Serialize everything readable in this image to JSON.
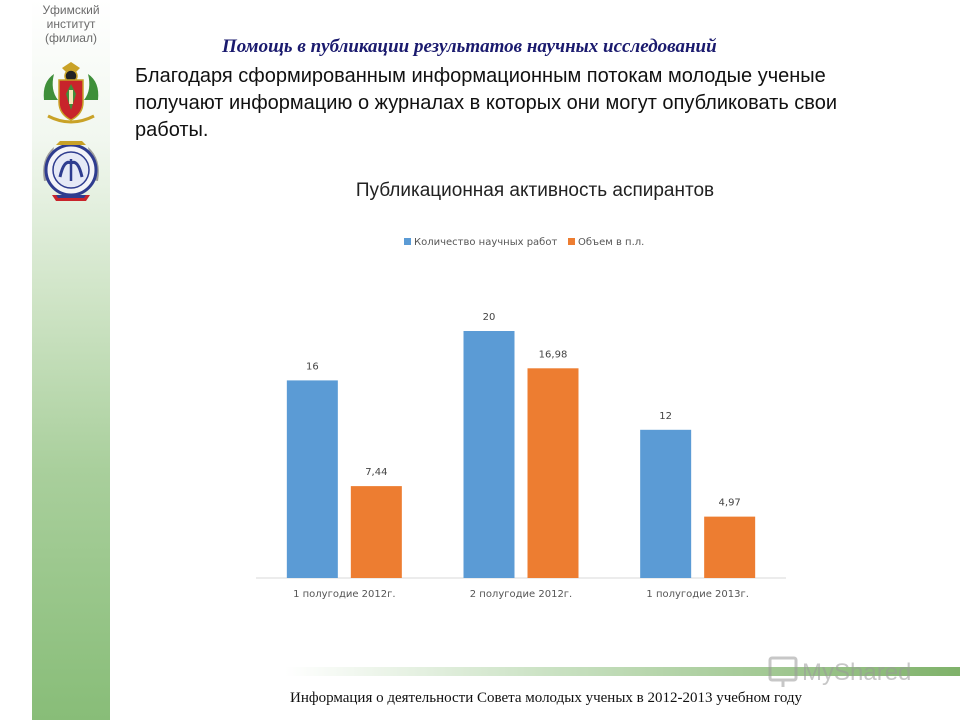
{
  "sidebar": {
    "institute_line1": "Уфимский",
    "institute_line2": "институт",
    "institute_line3": "(филиал)"
  },
  "slide": {
    "heading": "Помощь в публикации результатов научных исследований",
    "intro": "Благодаря сформированным информационным потокам молодые ученые получают информацию о журналах в которых они могут опубликовать свои работы."
  },
  "chart_data": {
    "type": "bar",
    "title": "Публикационная активность аспирантов",
    "categories": [
      "1 полугодие 2012г.",
      "2 полугодие 2012г.",
      "1 полугодие 2013г."
    ],
    "series": [
      {
        "name": "Количество научных работ",
        "values": [
          16,
          20,
          12
        ],
        "labels": [
          "16",
          "20",
          "12"
        ],
        "color": "#5b9bd5"
      },
      {
        "name": "Объем в п.л.",
        "values": [
          7.44,
          16.98,
          4.97
        ],
        "labels": [
          "7,44",
          "16,98",
          "4,97"
        ],
        "color": "#ed7d31"
      }
    ],
    "ylim": [
      0,
      20
    ],
    "grid": false,
    "legend": "top"
  },
  "footer": {
    "text": "Информация о деятельности Совета молодых ученых в 2012-2013 учебном году"
  },
  "watermark": {
    "text": "MyShared"
  }
}
